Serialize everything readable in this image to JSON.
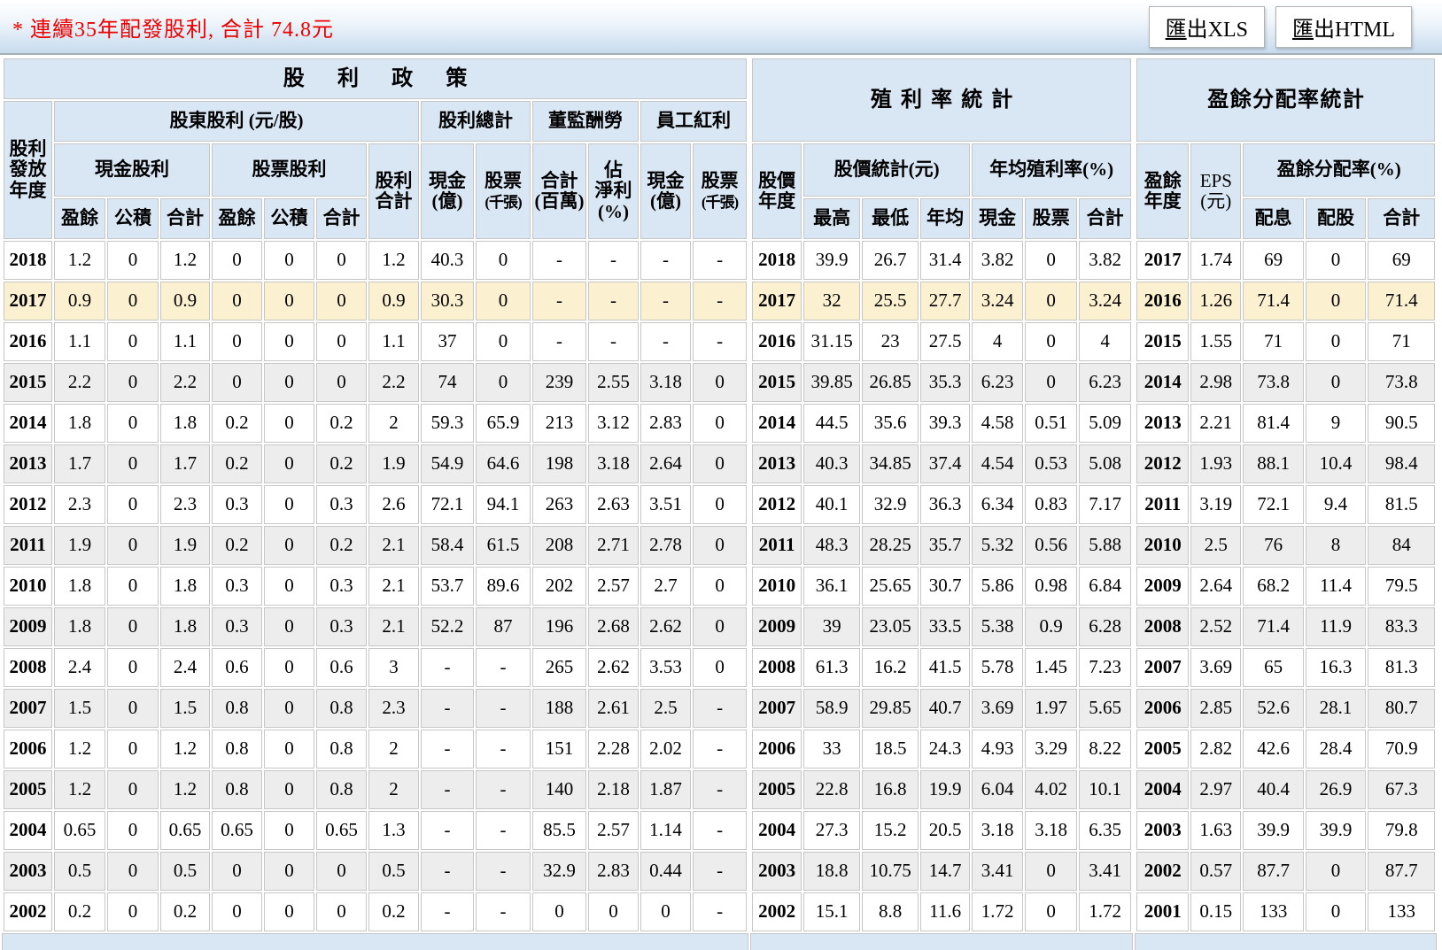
{
  "note": "* 連續35年配發股利, 合計 74.8元",
  "toolbar": {
    "export_xls": "匯出XLS",
    "export_html": "匯出HTML"
  },
  "colors": {
    "header_bg": "#d9e7f5",
    "row_alt": "#ededed",
    "row_highlight": "#fbf0cf",
    "note_red": "#ee0000"
  },
  "dividend_table": {
    "title": "股利政策",
    "headers": {
      "year": "股利\n發放\n年度",
      "shareholder_group": "股東股利 (元/股)",
      "cash_group": "現金股利",
      "stock_group": "股票股利",
      "earnings1": "盈餘",
      "surplus1": "公積",
      "total1": "合計",
      "earnings2": "盈餘",
      "surplus2": "公積",
      "total2": "合計",
      "div_total": "股利\n合計",
      "grand_group": "股利總計",
      "grand_cash": "現金\n(億)",
      "grand_stock_main": "股票",
      "grand_stock_sub": "(千張)",
      "board_group": "董監酬勞",
      "board_total": "合計\n(百萬)",
      "board_ratio": "佔\n淨利\n(%)",
      "emp_group": "員工紅利",
      "emp_cash": "現金\n(億)",
      "emp_stock_main": "股票",
      "emp_stock_sub": "(千張)"
    },
    "rows": [
      [
        "2018",
        "1.2",
        "0",
        "1.2",
        "0",
        "0",
        "0",
        "1.2",
        "40.3",
        "0",
        "-",
        "-",
        "-",
        "-"
      ],
      [
        "2017",
        "0.9",
        "0",
        "0.9",
        "0",
        "0",
        "0",
        "0.9",
        "30.3",
        "0",
        "-",
        "-",
        "-",
        "-"
      ],
      [
        "2016",
        "1.1",
        "0",
        "1.1",
        "0",
        "0",
        "0",
        "1.1",
        "37",
        "0",
        "-",
        "-",
        "-",
        "-"
      ],
      [
        "2015",
        "2.2",
        "0",
        "2.2",
        "0",
        "0",
        "0",
        "2.2",
        "74",
        "0",
        "239",
        "2.55",
        "3.18",
        "0"
      ],
      [
        "2014",
        "1.8",
        "0",
        "1.8",
        "0.2",
        "0",
        "0.2",
        "2",
        "59.3",
        "65.9",
        "213",
        "3.12",
        "2.83",
        "0"
      ],
      [
        "2013",
        "1.7",
        "0",
        "1.7",
        "0.2",
        "0",
        "0.2",
        "1.9",
        "54.9",
        "64.6",
        "198",
        "3.18",
        "2.64",
        "0"
      ],
      [
        "2012",
        "2.3",
        "0",
        "2.3",
        "0.3",
        "0",
        "0.3",
        "2.6",
        "72.1",
        "94.1",
        "263",
        "2.63",
        "3.51",
        "0"
      ],
      [
        "2011",
        "1.9",
        "0",
        "1.9",
        "0.2",
        "0",
        "0.2",
        "2.1",
        "58.4",
        "61.5",
        "208",
        "2.71",
        "2.78",
        "0"
      ],
      [
        "2010",
        "1.8",
        "0",
        "1.8",
        "0.3",
        "0",
        "0.3",
        "2.1",
        "53.7",
        "89.6",
        "202",
        "2.57",
        "2.7",
        "0"
      ],
      [
        "2009",
        "1.8",
        "0",
        "1.8",
        "0.3",
        "0",
        "0.3",
        "2.1",
        "52.2",
        "87",
        "196",
        "2.68",
        "2.62",
        "0"
      ],
      [
        "2008",
        "2.4",
        "0",
        "2.4",
        "0.6",
        "0",
        "0.6",
        "3",
        "-",
        "-",
        "265",
        "2.62",
        "3.53",
        "0"
      ],
      [
        "2007",
        "1.5",
        "0",
        "1.5",
        "0.8",
        "0",
        "0.8",
        "2.3",
        "-",
        "-",
        "188",
        "2.61",
        "2.5",
        "-"
      ],
      [
        "2006",
        "1.2",
        "0",
        "1.2",
        "0.8",
        "0",
        "0.8",
        "2",
        "-",
        "-",
        "151",
        "2.28",
        "2.02",
        "-"
      ],
      [
        "2005",
        "1.2",
        "0",
        "1.2",
        "0.8",
        "0",
        "0.8",
        "2",
        "-",
        "-",
        "140",
        "2.18",
        "1.87",
        "-"
      ],
      [
        "2004",
        "0.65",
        "0",
        "0.65",
        "0.65",
        "0",
        "0.65",
        "1.3",
        "-",
        "-",
        "85.5",
        "2.57",
        "1.14",
        "-"
      ],
      [
        "2003",
        "0.5",
        "0",
        "0.5",
        "0",
        "0",
        "0",
        "0.5",
        "-",
        "-",
        "32.9",
        "2.83",
        "0.44",
        "-"
      ],
      [
        "2002",
        "0.2",
        "0",
        "0.2",
        "0",
        "0",
        "0",
        "0.2",
        "-",
        "-",
        "0",
        "0",
        "0",
        "-"
      ]
    ]
  },
  "yield_table": {
    "title": "殖利率統計",
    "headers": {
      "year": "股價\n年度",
      "price_group": "股價統計(元)",
      "high": "最高",
      "low": "最低",
      "avg": "年均",
      "yield_group": "年均殖利率(%)",
      "cash": "現金",
      "stock": "股票",
      "total": "合計"
    },
    "rows": [
      [
        "2018",
        "39.9",
        "26.7",
        "31.4",
        "3.82",
        "0",
        "3.82"
      ],
      [
        "2017",
        "32",
        "25.5",
        "27.7",
        "3.24",
        "0",
        "3.24"
      ],
      [
        "2016",
        "31.15",
        "23",
        "27.5",
        "4",
        "0",
        "4"
      ],
      [
        "2015",
        "39.85",
        "26.85",
        "35.3",
        "6.23",
        "0",
        "6.23"
      ],
      [
        "2014",
        "44.5",
        "35.6",
        "39.3",
        "4.58",
        "0.51",
        "5.09"
      ],
      [
        "2013",
        "40.3",
        "34.85",
        "37.4",
        "4.54",
        "0.53",
        "5.08"
      ],
      [
        "2012",
        "40.1",
        "32.9",
        "36.3",
        "6.34",
        "0.83",
        "7.17"
      ],
      [
        "2011",
        "48.3",
        "28.25",
        "35.7",
        "5.32",
        "0.56",
        "5.88"
      ],
      [
        "2010",
        "36.1",
        "25.65",
        "30.7",
        "5.86",
        "0.98",
        "6.84"
      ],
      [
        "2009",
        "39",
        "23.05",
        "33.5",
        "5.38",
        "0.9",
        "6.28"
      ],
      [
        "2008",
        "61.3",
        "16.2",
        "41.5",
        "5.78",
        "1.45",
        "7.23"
      ],
      [
        "2007",
        "58.9",
        "29.85",
        "40.7",
        "3.69",
        "1.97",
        "5.65"
      ],
      [
        "2006",
        "33",
        "18.5",
        "24.3",
        "4.93",
        "3.29",
        "8.22"
      ],
      [
        "2005",
        "22.8",
        "16.8",
        "19.9",
        "6.04",
        "4.02",
        "10.1"
      ],
      [
        "2004",
        "27.3",
        "15.2",
        "20.5",
        "3.18",
        "3.18",
        "6.35"
      ],
      [
        "2003",
        "18.8",
        "10.75",
        "14.7",
        "3.41",
        "0",
        "3.41"
      ],
      [
        "2002",
        "15.1",
        "8.8",
        "11.6",
        "1.72",
        "0",
        "1.72"
      ]
    ]
  },
  "payout_table": {
    "title": "盈餘分配率統計",
    "headers": {
      "year": "盈餘\n年度",
      "eps": "EPS\n(元)",
      "ratio_group": "盈餘分配率(%)",
      "cash": "配息",
      "stock": "配股",
      "total": "合計"
    },
    "rows": [
      [
        "2017",
        "1.74",
        "69",
        "0",
        "69"
      ],
      [
        "2016",
        "1.26",
        "71.4",
        "0",
        "71.4"
      ],
      [
        "2015",
        "1.55",
        "71",
        "0",
        "71"
      ],
      [
        "2014",
        "2.98",
        "73.8",
        "0",
        "73.8"
      ],
      [
        "2013",
        "2.21",
        "81.4",
        "9",
        "90.5"
      ],
      [
        "2012",
        "1.93",
        "88.1",
        "10.4",
        "98.4"
      ],
      [
        "2011",
        "3.19",
        "72.1",
        "9.4",
        "81.5"
      ],
      [
        "2010",
        "2.5",
        "76",
        "8",
        "84"
      ],
      [
        "2009",
        "2.64",
        "68.2",
        "11.4",
        "79.5"
      ],
      [
        "2008",
        "2.52",
        "71.4",
        "11.9",
        "83.3"
      ],
      [
        "2007",
        "3.69",
        "65",
        "16.3",
        "81.3"
      ],
      [
        "2006",
        "2.85",
        "52.6",
        "28.1",
        "80.7"
      ],
      [
        "2005",
        "2.82",
        "42.6",
        "28.4",
        "70.9"
      ],
      [
        "2004",
        "2.97",
        "40.4",
        "26.9",
        "67.3"
      ],
      [
        "2003",
        "1.63",
        "39.9",
        "39.9",
        "79.8"
      ],
      [
        "2002",
        "0.57",
        "87.7",
        "0",
        "87.7"
      ],
      [
        "2001",
        "0.15",
        "133",
        "0",
        "133"
      ]
    ]
  }
}
